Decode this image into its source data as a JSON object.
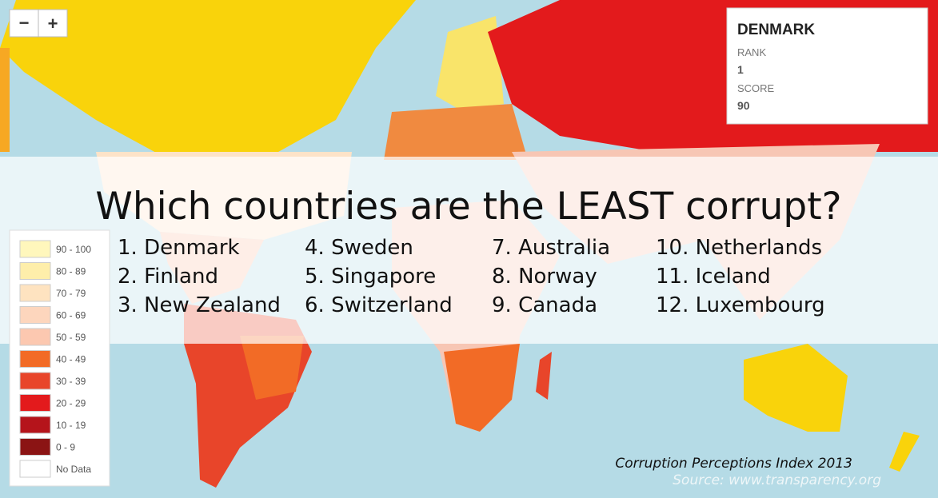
{
  "zoom": {
    "out": "−",
    "in": "+"
  },
  "info_box": {
    "country": "DENMARK",
    "rank_label": "RANK",
    "rank": "1",
    "score_label": "SCORE",
    "score": "90"
  },
  "title": "Which countries are the LEAST corrupt?",
  "ranking": [
    [
      "1. Denmark",
      "2. Finland",
      "3. New Zealand"
    ],
    [
      "4. Sweden",
      "5. Singapore",
      "6. Switzerland"
    ],
    [
      "7. Australia",
      "8. Norway",
      "9. Canada"
    ],
    [
      "10. Netherlands",
      "11. Iceland",
      "12. Luxembourg"
    ]
  ],
  "legend": [
    {
      "label": "90 - 100",
      "color": "#fff7bc"
    },
    {
      "label": "80 - 89",
      "color": "#feeeaa"
    },
    {
      "label": "70 - 79",
      "color": "#fee3c0"
    },
    {
      "label": "60 - 69",
      "color": "#fdd6bd"
    },
    {
      "label": "50 - 59",
      "color": "#fcc8b0"
    },
    {
      "label": "40 - 49",
      "color": "#f26b26"
    },
    {
      "label": "30 - 39",
      "color": "#e8452a"
    },
    {
      "label": "20 - 29",
      "color": "#e31a1c"
    },
    {
      "label": "10 - 19",
      "color": "#b5141b"
    },
    {
      "label": "0 - 9",
      "color": "#8b1414"
    },
    {
      "label": "No Data",
      "color": "#ffffff"
    }
  ],
  "footer": {
    "index": "Corruption Perceptions Index 2013",
    "source": "Source: www.transparency.org"
  }
}
